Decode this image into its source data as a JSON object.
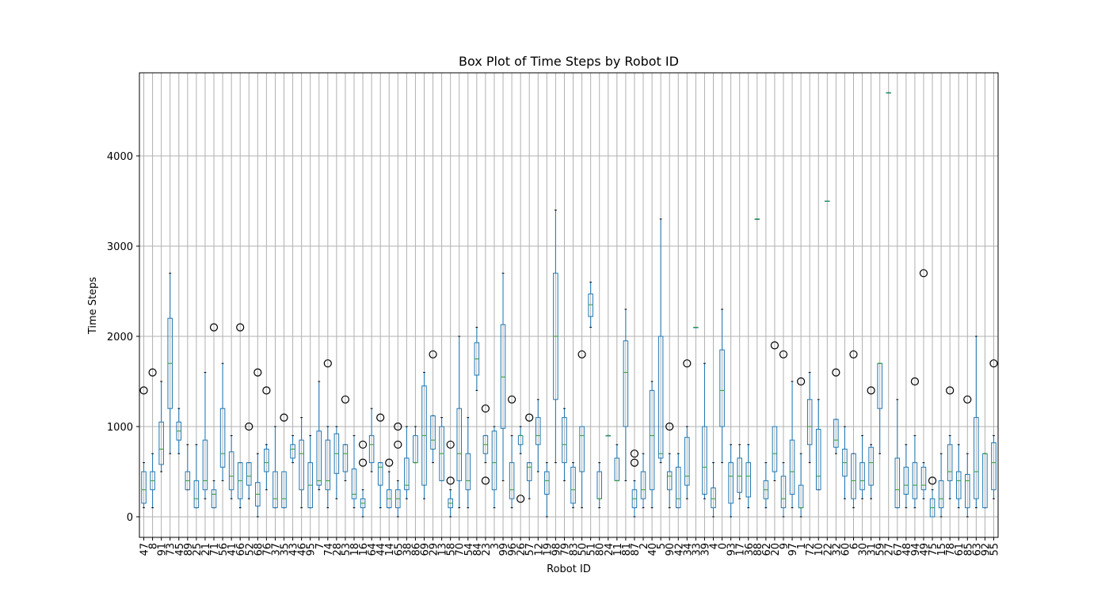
{
  "chart_data": {
    "type": "box",
    "title": "Box Plot of Time Steps by Robot ID",
    "x_label": "Robot ID",
    "y_label": "Time Steps",
    "categories": [
      "47",
      "8",
      "91",
      "73",
      "45",
      "89",
      "25",
      "21",
      "71",
      "56",
      "41",
      "66",
      "52",
      "68",
      "76",
      "37",
      "35",
      "43",
      "46",
      "95",
      "7",
      "74",
      "28",
      "53",
      "18",
      "16",
      "64",
      "44",
      "14",
      "65",
      "38",
      "86",
      "69",
      "29",
      "13",
      "58",
      "70",
      "54",
      "84",
      "23",
      "3",
      "99",
      "96",
      "26",
      "57",
      "12",
      "19",
      "98",
      "79",
      "83",
      "50",
      "51",
      "80",
      "24",
      "11",
      "81",
      "87",
      "2",
      "40",
      "5",
      "90",
      "42",
      "34",
      "33",
      "39",
      "4",
      "0",
      "93",
      "17",
      "36",
      "88",
      "62",
      "20",
      "9",
      "97",
      "1",
      "72",
      "10",
      "22",
      "32",
      "60",
      "6",
      "30",
      "31",
      "59",
      "27",
      "67",
      "48",
      "94",
      "49",
      "75",
      "15",
      "78",
      "61",
      "85",
      "63",
      "92",
      "55"
    ],
    "whislo": [
      100,
      100,
      500,
      700,
      700,
      300,
      100,
      200,
      100,
      400,
      200,
      100,
      200,
      0,
      300,
      100,
      100,
      600,
      100,
      100,
      300,
      100,
      200,
      400,
      100,
      0,
      500,
      100,
      100,
      0,
      200,
      600,
      200,
      600,
      400,
      0,
      100,
      100,
      1400,
      600,
      100,
      400,
      100,
      700,
      200,
      500,
      0,
      600,
      400,
      100,
      100,
      2100,
      100,
      900,
      400,
      400,
      0,
      100,
      100,
      600,
      100,
      100,
      200,
      2100,
      200,
      0,
      600,
      0,
      200,
      100,
      3300,
      100,
      400,
      0,
      100,
      0,
      600,
      300,
      3500,
      700,
      200,
      100,
      200,
      200,
      700,
      4700,
      100,
      100,
      100,
      200,
      0,
      0,
      200,
      100,
      0,
      100,
      100,
      200
    ],
    "q1": [
      150,
      300,
      580,
      1200,
      850,
      300,
      100,
      300,
      100,
      550,
      300,
      200,
      350,
      120,
      500,
      100,
      100,
      650,
      300,
      100,
      350,
      300,
      480,
      500,
      200,
      100,
      600,
      350,
      100,
      100,
      300,
      600,
      350,
      750,
      400,
      100,
      400,
      300,
      1570,
      700,
      300,
      980,
      200,
      800,
      400,
      800,
      250,
      1300,
      600,
      150,
      500,
      2220,
      200,
      900,
      400,
      1000,
      100,
      200,
      300,
      650,
      300,
      100,
      350,
      2100,
      250,
      100,
      1000,
      150,
      270,
      220,
      3300,
      200,
      500,
      100,
      250,
      100,
      800,
      300,
      3500,
      770,
      450,
      200,
      300,
      350,
      1200,
      4700,
      100,
      250,
      200,
      300,
      0,
      100,
      400,
      200,
      100,
      200,
      100,
      300
    ],
    "median": [
      300,
      400,
      750,
      1700,
      950,
      400,
      200,
      400,
      250,
      700,
      450,
      400,
      450,
      250,
      600,
      200,
      200,
      750,
      700,
      350,
      400,
      400,
      700,
      700,
      250,
      150,
      800,
      550,
      200,
      200,
      350,
      600,
      900,
      850,
      700,
      150,
      700,
      400,
      1750,
      800,
      600,
      1550,
      300,
      900,
      550,
      900,
      400,
      2000,
      800,
      300,
      900,
      2350,
      200,
      900,
      400,
      1600,
      200,
      300,
      900,
      700,
      450,
      200,
      450,
      2100,
      550,
      200,
      1400,
      450,
      450,
      450,
      3300,
      300,
      700,
      200,
      500,
      100,
      1000,
      450,
      3500,
      850,
      600,
      400,
      400,
      600,
      1700,
      4700,
      300,
      350,
      350,
      350,
      100,
      200,
      500,
      400,
      400,
      500,
      700,
      600
    ],
    "q3": [
      500,
      500,
      1050,
      2200,
      1050,
      500,
      400,
      850,
      300,
      1200,
      720,
      600,
      600,
      380,
      750,
      500,
      500,
      800,
      850,
      600,
      950,
      850,
      920,
      800,
      530,
      200,
      900,
      600,
      300,
      300,
      650,
      900,
      1450,
      1120,
      1000,
      200,
      1200,
      700,
      1930,
      900,
      950,
      2130,
      600,
      900,
      600,
      1100,
      500,
      2700,
      1100,
      550,
      1000,
      2470,
      500,
      900,
      650,
      1950,
      300,
      500,
      1400,
      2000,
      500,
      550,
      880,
      2100,
      1000,
      320,
      1850,
      600,
      650,
      600,
      3300,
      400,
      1000,
      450,
      850,
      350,
      1300,
      970,
      3500,
      1080,
      750,
      700,
      600,
      770,
      1700,
      4700,
      650,
      550,
      600,
      550,
      200,
      400,
      800,
      500,
      470,
      1100,
      700,
      820
    ],
    "whishi": [
      600,
      700,
      1500,
      2700,
      1200,
      800,
      800,
      1600,
      400,
      1700,
      900,
      600,
      600,
      700,
      800,
      1000,
      500,
      900,
      1100,
      900,
      1500,
      1000,
      1000,
      800,
      900,
      300,
      1200,
      600,
      500,
      400,
      1000,
      1000,
      1600,
      1120,
      1100,
      300,
      2000,
      1100,
      2100,
      900,
      1000,
      2700,
      900,
      1000,
      600,
      1300,
      600,
      3400,
      1200,
      600,
      1000,
      2600,
      600,
      900,
      800,
      2300,
      400,
      700,
      1500,
      3300,
      700,
      700,
      1000,
      2100,
      1700,
      600,
      2300,
      800,
      800,
      800,
      3300,
      600,
      1000,
      600,
      1500,
      700,
      1600,
      1300,
      3500,
      1080,
      1000,
      700,
      900,
      800,
      1700,
      4700,
      1300,
      800,
      900,
      600,
      300,
      700,
      900,
      800,
      700,
      2000,
      700,
      900
    ],
    "fliers": [
      [
        1400
      ],
      [
        1600
      ],
      [],
      [],
      [],
      [],
      [],
      [],
      [
        2100
      ],
      [],
      [],
      [
        2100
      ],
      [
        1000
      ],
      [
        1600
      ],
      [
        1400
      ],
      [],
      [
        1100
      ],
      [],
      [],
      [],
      [],
      [
        1700
      ],
      [],
      [
        1300
      ],
      [],
      [
        600,
        800
      ],
      [],
      [
        1100
      ],
      [
        600
      ],
      [
        800,
        1000
      ],
      [],
      [],
      [],
      [
        1800
      ],
      [],
      [
        400,
        800
      ],
      [],
      [],
      [],
      [
        400,
        1200
      ],
      [],
      [],
      [
        1300
      ],
      [
        200
      ],
      [
        1100
      ],
      [],
      [],
      [],
      [],
      [],
      [
        1800
      ],
      [],
      [],
      [],
      [],
      [],
      [
        600,
        700
      ],
      [],
      [],
      [],
      [
        1000
      ],
      [],
      [
        1700
      ],
      [],
      [],
      [],
      [],
      [],
      [],
      [],
      [],
      [],
      [
        1900
      ],
      [
        1800
      ],
      [],
      [
        1500
      ],
      [],
      [],
      [],
      [
        1600
      ],
      [],
      [
        1800
      ],
      [],
      [
        1400
      ],
      [],
      [],
      [],
      [],
      [
        1500
      ],
      [
        2700
      ],
      [
        400
      ],
      [],
      [
        1400
      ],
      [],
      [
        1300
      ],
      [],
      [],
      [
        1700
      ]
    ],
    "box_color": "#1f77b4",
    "median_color": "#2ca02c",
    "ylim": [
      -228,
      4921
    ],
    "yticks": [
      0,
      1000,
      2000,
      3000,
      4000
    ],
    "grid": true
  }
}
